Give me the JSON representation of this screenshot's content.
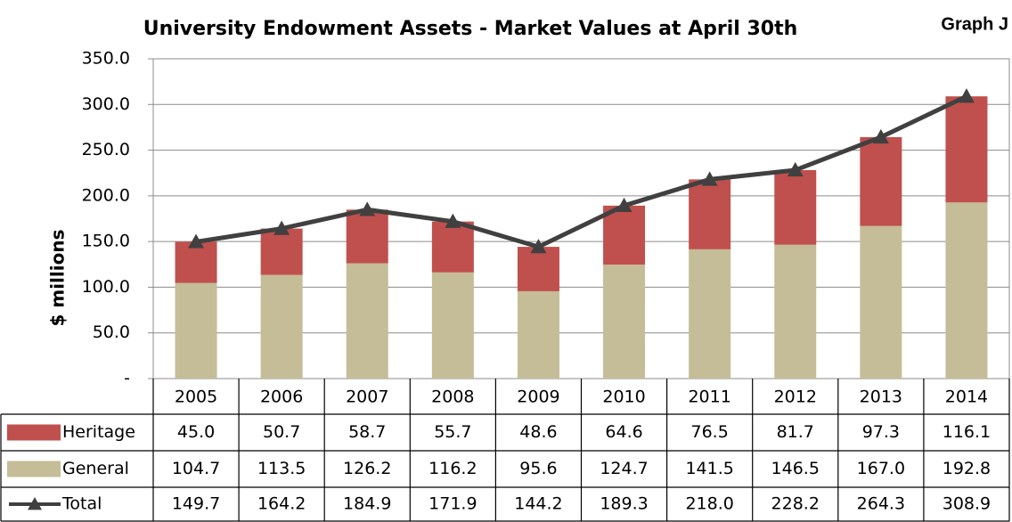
{
  "chart_data": {
    "type": "bar",
    "stacked": true,
    "title": "University Endowment Assets - Market Values at April 30th",
    "corner_label": "Graph J",
    "y_axis_label": "$ millions",
    "categories": [
      "2005",
      "2006",
      "2007",
      "2008",
      "2009",
      "2010",
      "2011",
      "2012",
      "2013",
      "2014"
    ],
    "series": [
      {
        "name": "Heritage",
        "color": "#c0504d",
        "values": [
          45.0,
          50.7,
          58.7,
          55.7,
          48.6,
          64.6,
          76.5,
          81.7,
          97.3,
          116.1
        ],
        "value_labels": [
          "45.0",
          "50.7",
          "58.7",
          "55.7",
          "48.6",
          "64.6",
          "76.5",
          "81.7",
          "97.3",
          "116.1"
        ]
      },
      {
        "name": "General",
        "color": "#c4bd97",
        "values": [
          104.7,
          113.5,
          126.2,
          116.2,
          95.6,
          124.7,
          141.5,
          146.5,
          167.0,
          192.8
        ],
        "value_labels": [
          "104.7",
          "113.5",
          "126.2",
          "116.2",
          "95.6",
          "124.7",
          "141.5",
          "146.5",
          "167.0",
          "192.8"
        ]
      },
      {
        "name": "Total",
        "color": "#404040",
        "type": "line",
        "values": [
          149.7,
          164.2,
          184.9,
          171.9,
          144.2,
          189.3,
          218.0,
          228.2,
          264.3,
          308.9
        ],
        "value_labels": [
          "149.7",
          "164.2",
          "184.9",
          "171.9",
          "144.2",
          "189.3",
          "218.0",
          "228.2",
          "264.3",
          "308.9"
        ]
      }
    ],
    "ylim": [
      0,
      350
    ],
    "yticks": [
      {
        "value": 0,
        "label": "-"
      },
      {
        "value": 50,
        "label": "50.0"
      },
      {
        "value": 100,
        "label": "100.0"
      },
      {
        "value": 150,
        "label": "150.0"
      },
      {
        "value": 200,
        "label": "200.0"
      },
      {
        "value": 250,
        "label": "250.0"
      },
      {
        "value": 300,
        "label": "300.0"
      },
      {
        "value": 350,
        "label": "350.0"
      }
    ],
    "grid": true
  }
}
